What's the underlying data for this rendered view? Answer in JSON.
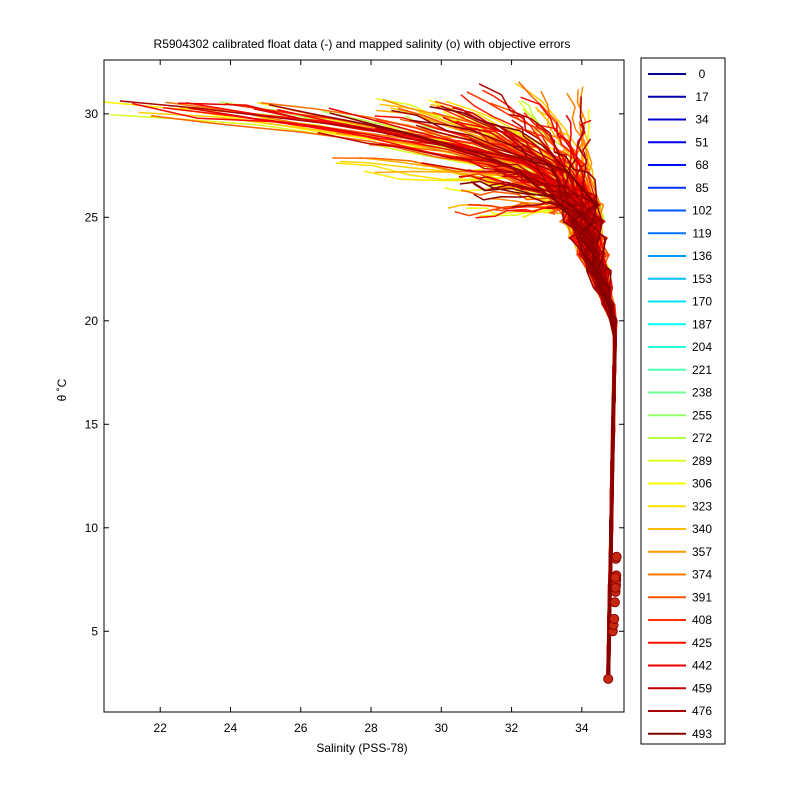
{
  "chart_data": {
    "type": "line",
    "title": "R5904302 calibrated float data (-) and mapped salinity (o) with objective errors",
    "xlabel": "Salinity (PSS-78)",
    "ylabel": "θ ˚C",
    "xlim": [
      20.4,
      35.2
    ],
    "ylim": [
      1.1,
      32.6
    ],
    "xticks": [
      22,
      24,
      26,
      28,
      30,
      32,
      34
    ],
    "yticks": [
      5,
      10,
      15,
      20,
      25,
      30
    ],
    "grid": false,
    "legend_position": "outside-right",
    "legend": [
      "0",
      "17",
      "34",
      "51",
      "68",
      "85",
      "102",
      "119",
      "136",
      "153",
      "170",
      "187",
      "204",
      "221",
      "238",
      "255",
      "272",
      "289",
      "306",
      "323",
      "340",
      "357",
      "374",
      "391",
      "408",
      "425",
      "442",
      "459",
      "476",
      "493"
    ],
    "colormap_stops": [
      "#00008f",
      "#0000ff",
      "#0080ff",
      "#00ffff",
      "#80ff80",
      "#ffff00",
      "#ff8000",
      "#ff0000",
      "#800000"
    ],
    "deep_profile": {
      "salinity": [
        34.75,
        34.76,
        34.78,
        34.8,
        34.83,
        34.85,
        34.88,
        34.9,
        34.92,
        34.93,
        34.95,
        34.96
      ],
      "theta": [
        2.7,
        4.0,
        5.5,
        7.0,
        8.5,
        10.0,
        12.0,
        14.0,
        15.5,
        17.0,
        18.5,
        20.0
      ]
    },
    "mapped_points": {
      "salinity": [
        34.75,
        34.88,
        34.9,
        34.92,
        34.94,
        34.96,
        34.97,
        34.98,
        34.98,
        34.97,
        34.96,
        34.95,
        34.97,
        34.99
      ],
      "theta": [
        2.7,
        5.0,
        5.3,
        5.6,
        6.4,
        6.9,
        7.2,
        7.5,
        7.7,
        7.3,
        7.1,
        7.6,
        8.5,
        8.6
      ]
    },
    "surface_families": [
      {
        "range": [
          20.4,
          34.0
        ],
        "theta": [
          29.9,
          30.4
        ]
      },
      {
        "range": [
          26.0,
          33.5
        ],
        "theta": [
          26.5,
          30.0
        ]
      },
      {
        "range": [
          30.0,
          34.5
        ],
        "theta": [
          24.5,
          31.5
        ]
      }
    ]
  }
}
